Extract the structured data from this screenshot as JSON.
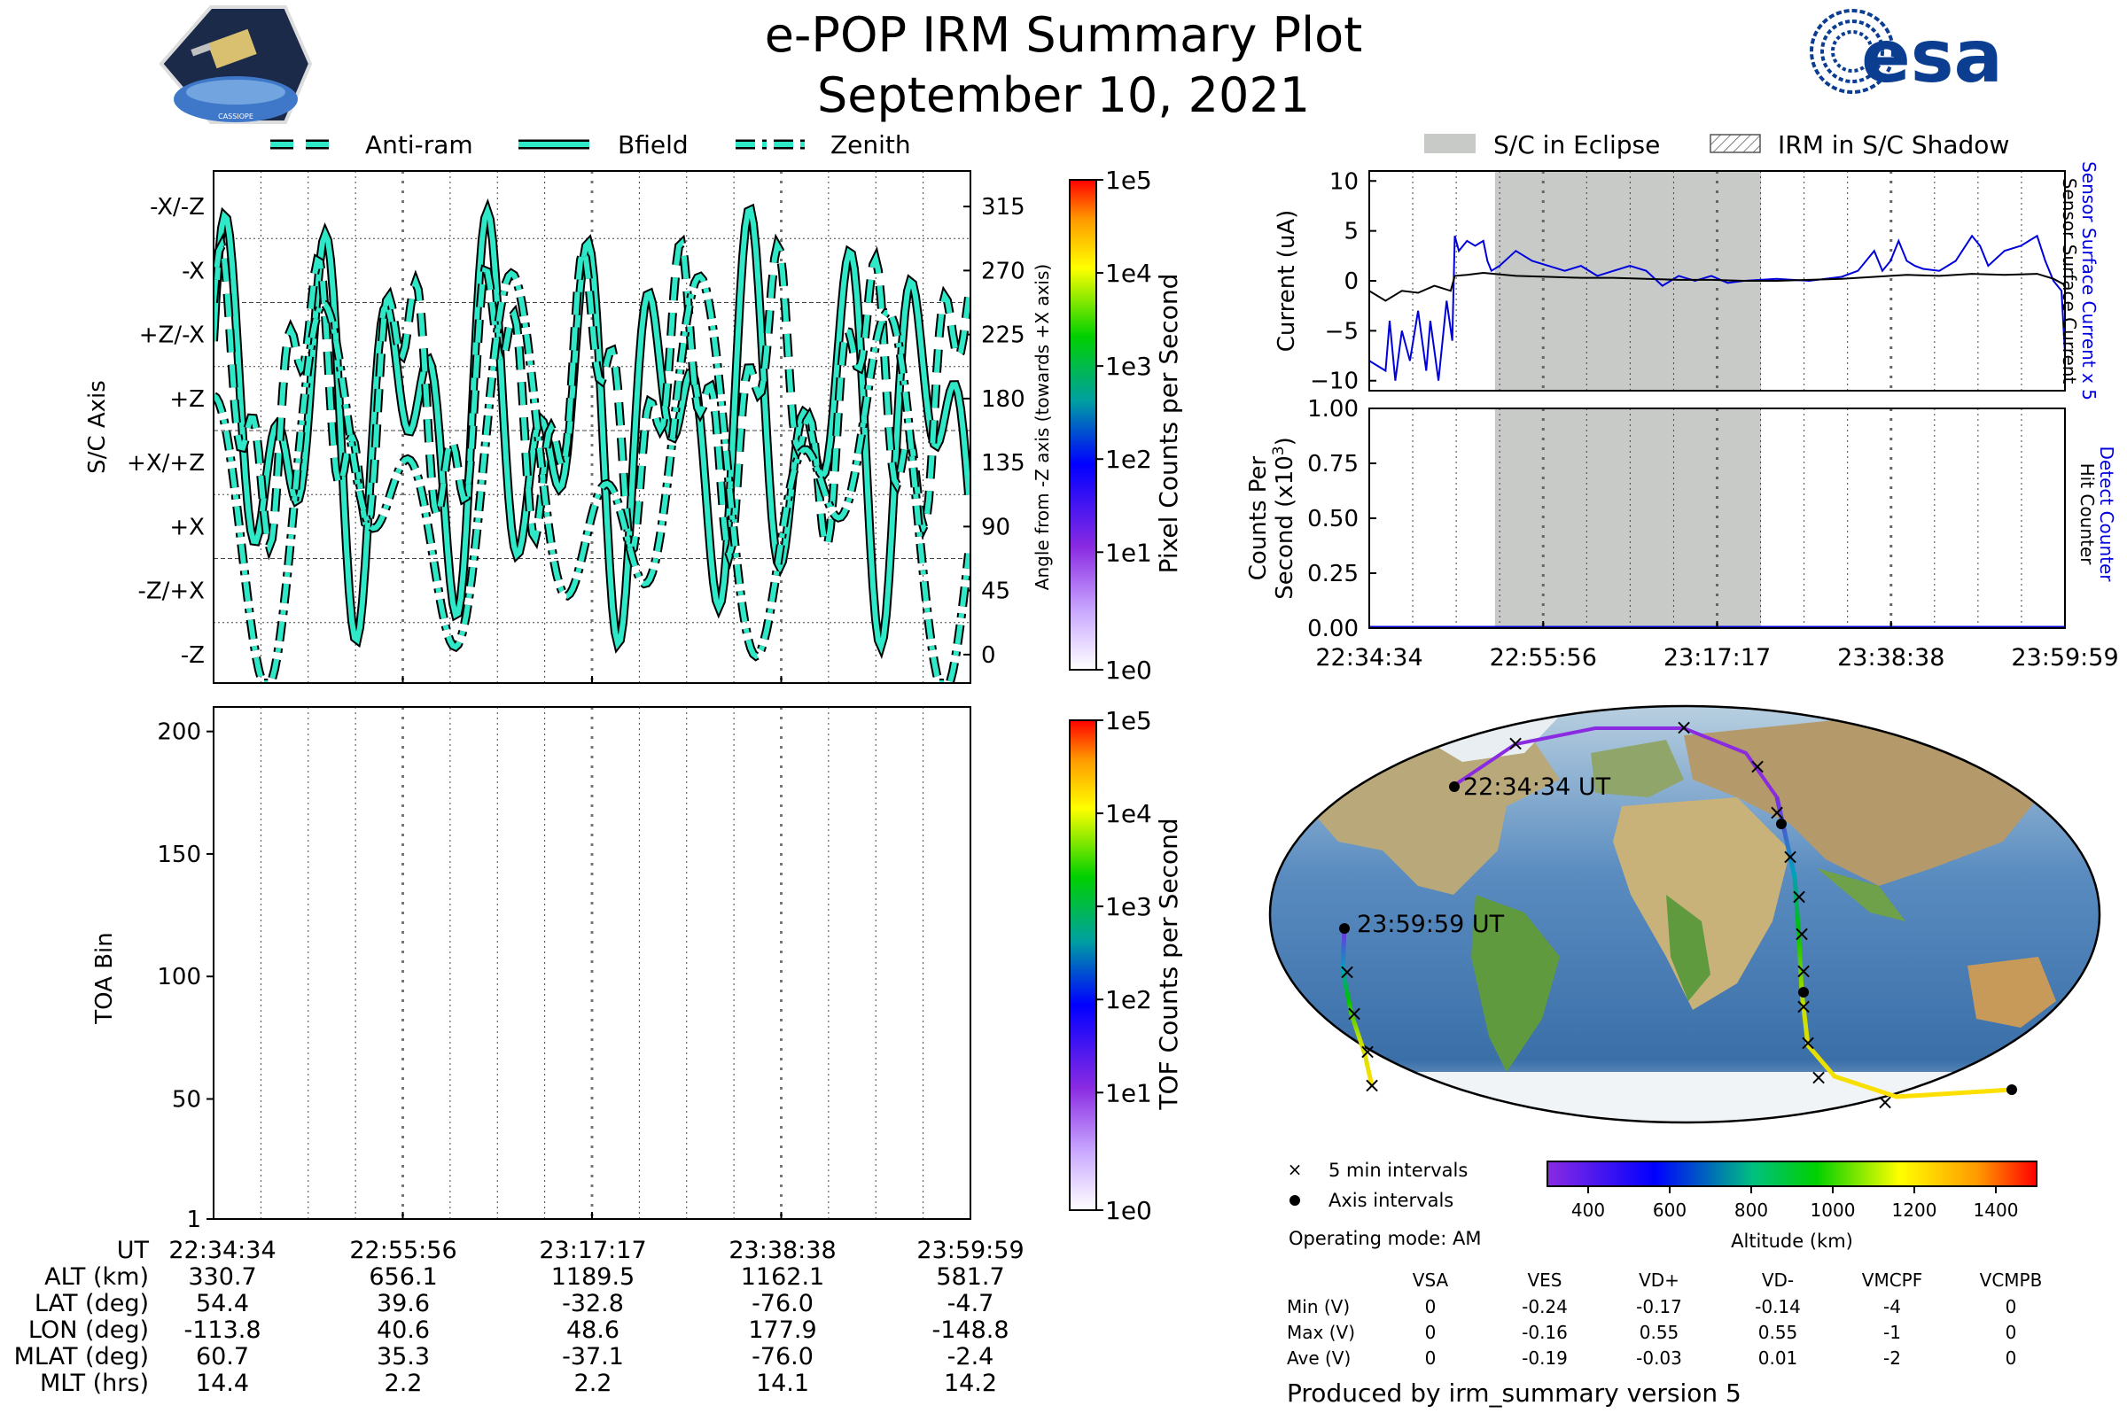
{
  "header": {
    "title": "e-POP IRM Summary Plot",
    "date": "September 10, 2021",
    "esa_wordmark": "esa",
    "cassiope_badge_text": "CASSIOPE"
  },
  "colors": {
    "accent_cyan": "#2ee8c8",
    "eclipse_gray": "#c8cac8",
    "sensor_blue": "#0000dd",
    "dark_line": "#000000"
  },
  "attitude_legend": [
    "Anti-ram",
    "Bfield",
    "Zenith"
  ],
  "eclipse_legend": [
    "S/C in Eclipse",
    "IRM in S/C Shadow"
  ],
  "time_ticks": [
    "22:34:34",
    "22:55:56",
    "23:17:17",
    "23:38:38",
    "23:59:59"
  ],
  "chart_data": [
    {
      "type": "line",
      "name": "attitude",
      "ylabel": "S/C Axis",
      "y_right_label": "Angle from -Z axis (towards +X axis)",
      "y_axis_labels": [
        "-Z",
        "-Z/+X",
        "+X",
        "+X/+Z",
        "+Z",
        "+Z/-X",
        "-X",
        "-X/-Z"
      ],
      "y_right_ticks": [
        "0",
        "45",
        "90",
        "135",
        "180",
        "225",
        "270",
        "315"
      ],
      "ylim": [
        -20,
        340
      ],
      "series_names": [
        "Anti-ram",
        "Bfield",
        "Zenith"
      ],
      "colorbar": {
        "label": "Pixel Counts per Second",
        "ticks": [
          "1e0",
          "1e1",
          "1e2",
          "1e3",
          "1e4",
          "1e5"
        ]
      }
    },
    {
      "type": "line",
      "name": "current",
      "ylabel": "Current (uA)",
      "ylim": [
        -11,
        11
      ],
      "y_ticks": [
        "10",
        "5",
        "0",
        "−5",
        "−10"
      ],
      "right_labels": [
        "Sensor Surface Current x 5",
        "Sensor Surface Current"
      ],
      "eclipse_span": [
        "22:50:00",
        "23:22:40"
      ],
      "series": [
        {
          "name": "Sensor Surface Current x 5",
          "color": "#0000dd",
          "points": [
            [
              0,
              -8
            ],
            [
              2,
              -9
            ],
            [
              2.5,
              -4
            ],
            [
              3.2,
              -10
            ],
            [
              4,
              -5
            ],
            [
              5,
              -8
            ],
            [
              6,
              -3
            ],
            [
              7,
              -9
            ],
            [
              7.5,
              -4
            ],
            [
              8.5,
              -10
            ],
            [
              9.5,
              -2
            ],
            [
              10.2,
              -6
            ],
            [
              10.5,
              4.5
            ],
            [
              11,
              3
            ],
            [
              12,
              4
            ],
            [
              13,
              3.5
            ],
            [
              14,
              4
            ],
            [
              14.5,
              2
            ],
            [
              15,
              1
            ],
            [
              16,
              1.5
            ],
            [
              18,
              3
            ],
            [
              20,
              2
            ],
            [
              22,
              1.5
            ],
            [
              24,
              1
            ],
            [
              26,
              1.5
            ],
            [
              28,
              0.5
            ],
            [
              30,
              1
            ],
            [
              32,
              1.5
            ],
            [
              34,
              1
            ],
            [
              36,
              -0.5
            ],
            [
              38,
              0.5
            ],
            [
              40,
              0
            ],
            [
              42,
              0.5
            ],
            [
              44,
              -0.2
            ],
            [
              46,
              0
            ],
            [
              50,
              0.2
            ],
            [
              54,
              0
            ],
            [
              58,
              0.4
            ],
            [
              60,
              1
            ],
            [
              62,
              3
            ],
            [
              63,
              1
            ],
            [
              64,
              2
            ],
            [
              65,
              4
            ],
            [
              66,
              2
            ],
            [
              67,
              1.5
            ],
            [
              68,
              1.2
            ],
            [
              70,
              1
            ],
            [
              72,
              2
            ],
            [
              74,
              4.5
            ],
            [
              75,
              3.5
            ],
            [
              76,
              1.5
            ],
            [
              78,
              3
            ],
            [
              80,
              3.5
            ],
            [
              82,
              4.5
            ],
            [
              83,
              2
            ],
            [
              84,
              0
            ],
            [
              85,
              -1
            ],
            [
              85.6,
              -10
            ]
          ]
        },
        {
          "name": "Sensor Surface Current",
          "color": "#000000",
          "points": [
            [
              0,
              -1
            ],
            [
              2,
              -2
            ],
            [
              4,
              -1
            ],
            [
              6,
              -1.2
            ],
            [
              8,
              -0.5
            ],
            [
              10,
              -1
            ],
            [
              10.5,
              0.5
            ],
            [
              12,
              0.6
            ],
            [
              14,
              0.8
            ],
            [
              18,
              0.5
            ],
            [
              22,
              0.4
            ],
            [
              26,
              0.3
            ],
            [
              30,
              0.3
            ],
            [
              34,
              0.2
            ],
            [
              38,
              0.1
            ],
            [
              42,
              0.1
            ],
            [
              46,
              0
            ],
            [
              50,
              0
            ],
            [
              54,
              0.1
            ],
            [
              58,
              0.2
            ],
            [
              62,
              0.4
            ],
            [
              66,
              0.6
            ],
            [
              70,
              0.5
            ],
            [
              74,
              0.7
            ],
            [
              78,
              0.6
            ],
            [
              82,
              0.7
            ],
            [
              84,
              0.2
            ],
            [
              85.6,
              -0.5
            ]
          ]
        }
      ]
    },
    {
      "type": "line",
      "name": "counts",
      "ylabel": "Counts Per Second (x10^3)",
      "ylabel_line1": "Counts Per",
      "ylabel_line2": "Second (x10",
      "ylabel_sup": "3",
      "ylim": [
        0,
        1
      ],
      "y_ticks": [
        "1.00",
        "0.75",
        "0.50",
        "0.25",
        "0.00"
      ],
      "right_labels": [
        "Detect Counter",
        "Hit Counter"
      ],
      "series": [
        {
          "name": "Detect Counter",
          "values": [
            0,
            0,
            0,
            0,
            0
          ]
        }
      ]
    },
    {
      "type": "heatmap",
      "name": "toa",
      "ylabel": "TOA Bin",
      "y_ticks": [
        "200",
        "150",
        "100",
        "50",
        "1"
      ],
      "ylim": [
        1,
        210
      ],
      "colorbar": {
        "label": "TOF Counts per Second",
        "ticks": [
          "1e0",
          "1e1",
          "1e2",
          "1e3",
          "1e4",
          "1e5"
        ]
      }
    }
  ],
  "orbit_map": {
    "start_label": "22:34:34 UT",
    "end_label": "23:59:59 UT",
    "legend_5min": "5 min intervals",
    "legend_axis": "Axis intervals",
    "operating_mode": "Operating mode: AM",
    "colorbar_label": "Altitude (km)",
    "colorbar_ticks": [
      "400",
      "600",
      "800",
      "1000",
      "1200",
      "1400"
    ]
  },
  "ephemeris": {
    "row_labels": [
      "UT",
      "ALT (km)",
      "LAT (deg)",
      "LON (deg)",
      "MLAT (deg)",
      "MLT (hrs)"
    ],
    "columns": [
      [
        "22:34:34",
        "330.7",
        "54.4",
        "-113.8",
        "60.7",
        "14.4"
      ],
      [
        "22:55:56",
        "656.1",
        "39.6",
        "40.6",
        "35.3",
        "2.2"
      ],
      [
        "23:17:17",
        "1189.5",
        "-32.8",
        "48.6",
        "-37.1",
        "2.2"
      ],
      [
        "23:38:38",
        "1162.1",
        "-76.0",
        "177.9",
        "-76.0",
        "14.1"
      ],
      [
        "23:59:59",
        "581.7",
        "-4.7",
        "-148.8",
        "-2.4",
        "14.2"
      ]
    ]
  },
  "voltage_table": {
    "headers": [
      "",
      "VSA",
      "VES",
      "VD+",
      "VD-",
      "VMCPF",
      "VCMPB"
    ],
    "rows": [
      [
        "Min (V)",
        "0",
        "-0.24",
        "-0.17",
        "-0.14",
        "-4",
        "0"
      ],
      [
        "Max (V)",
        "0",
        "-0.16",
        "0.55",
        "0.55",
        "-1",
        "0"
      ],
      [
        "Ave (V)",
        "0",
        "-0.19",
        "-0.03",
        "0.01",
        "-2",
        "0"
      ]
    ]
  },
  "footer": {
    "produced_by": "Produced by irm_summary version 5"
  }
}
